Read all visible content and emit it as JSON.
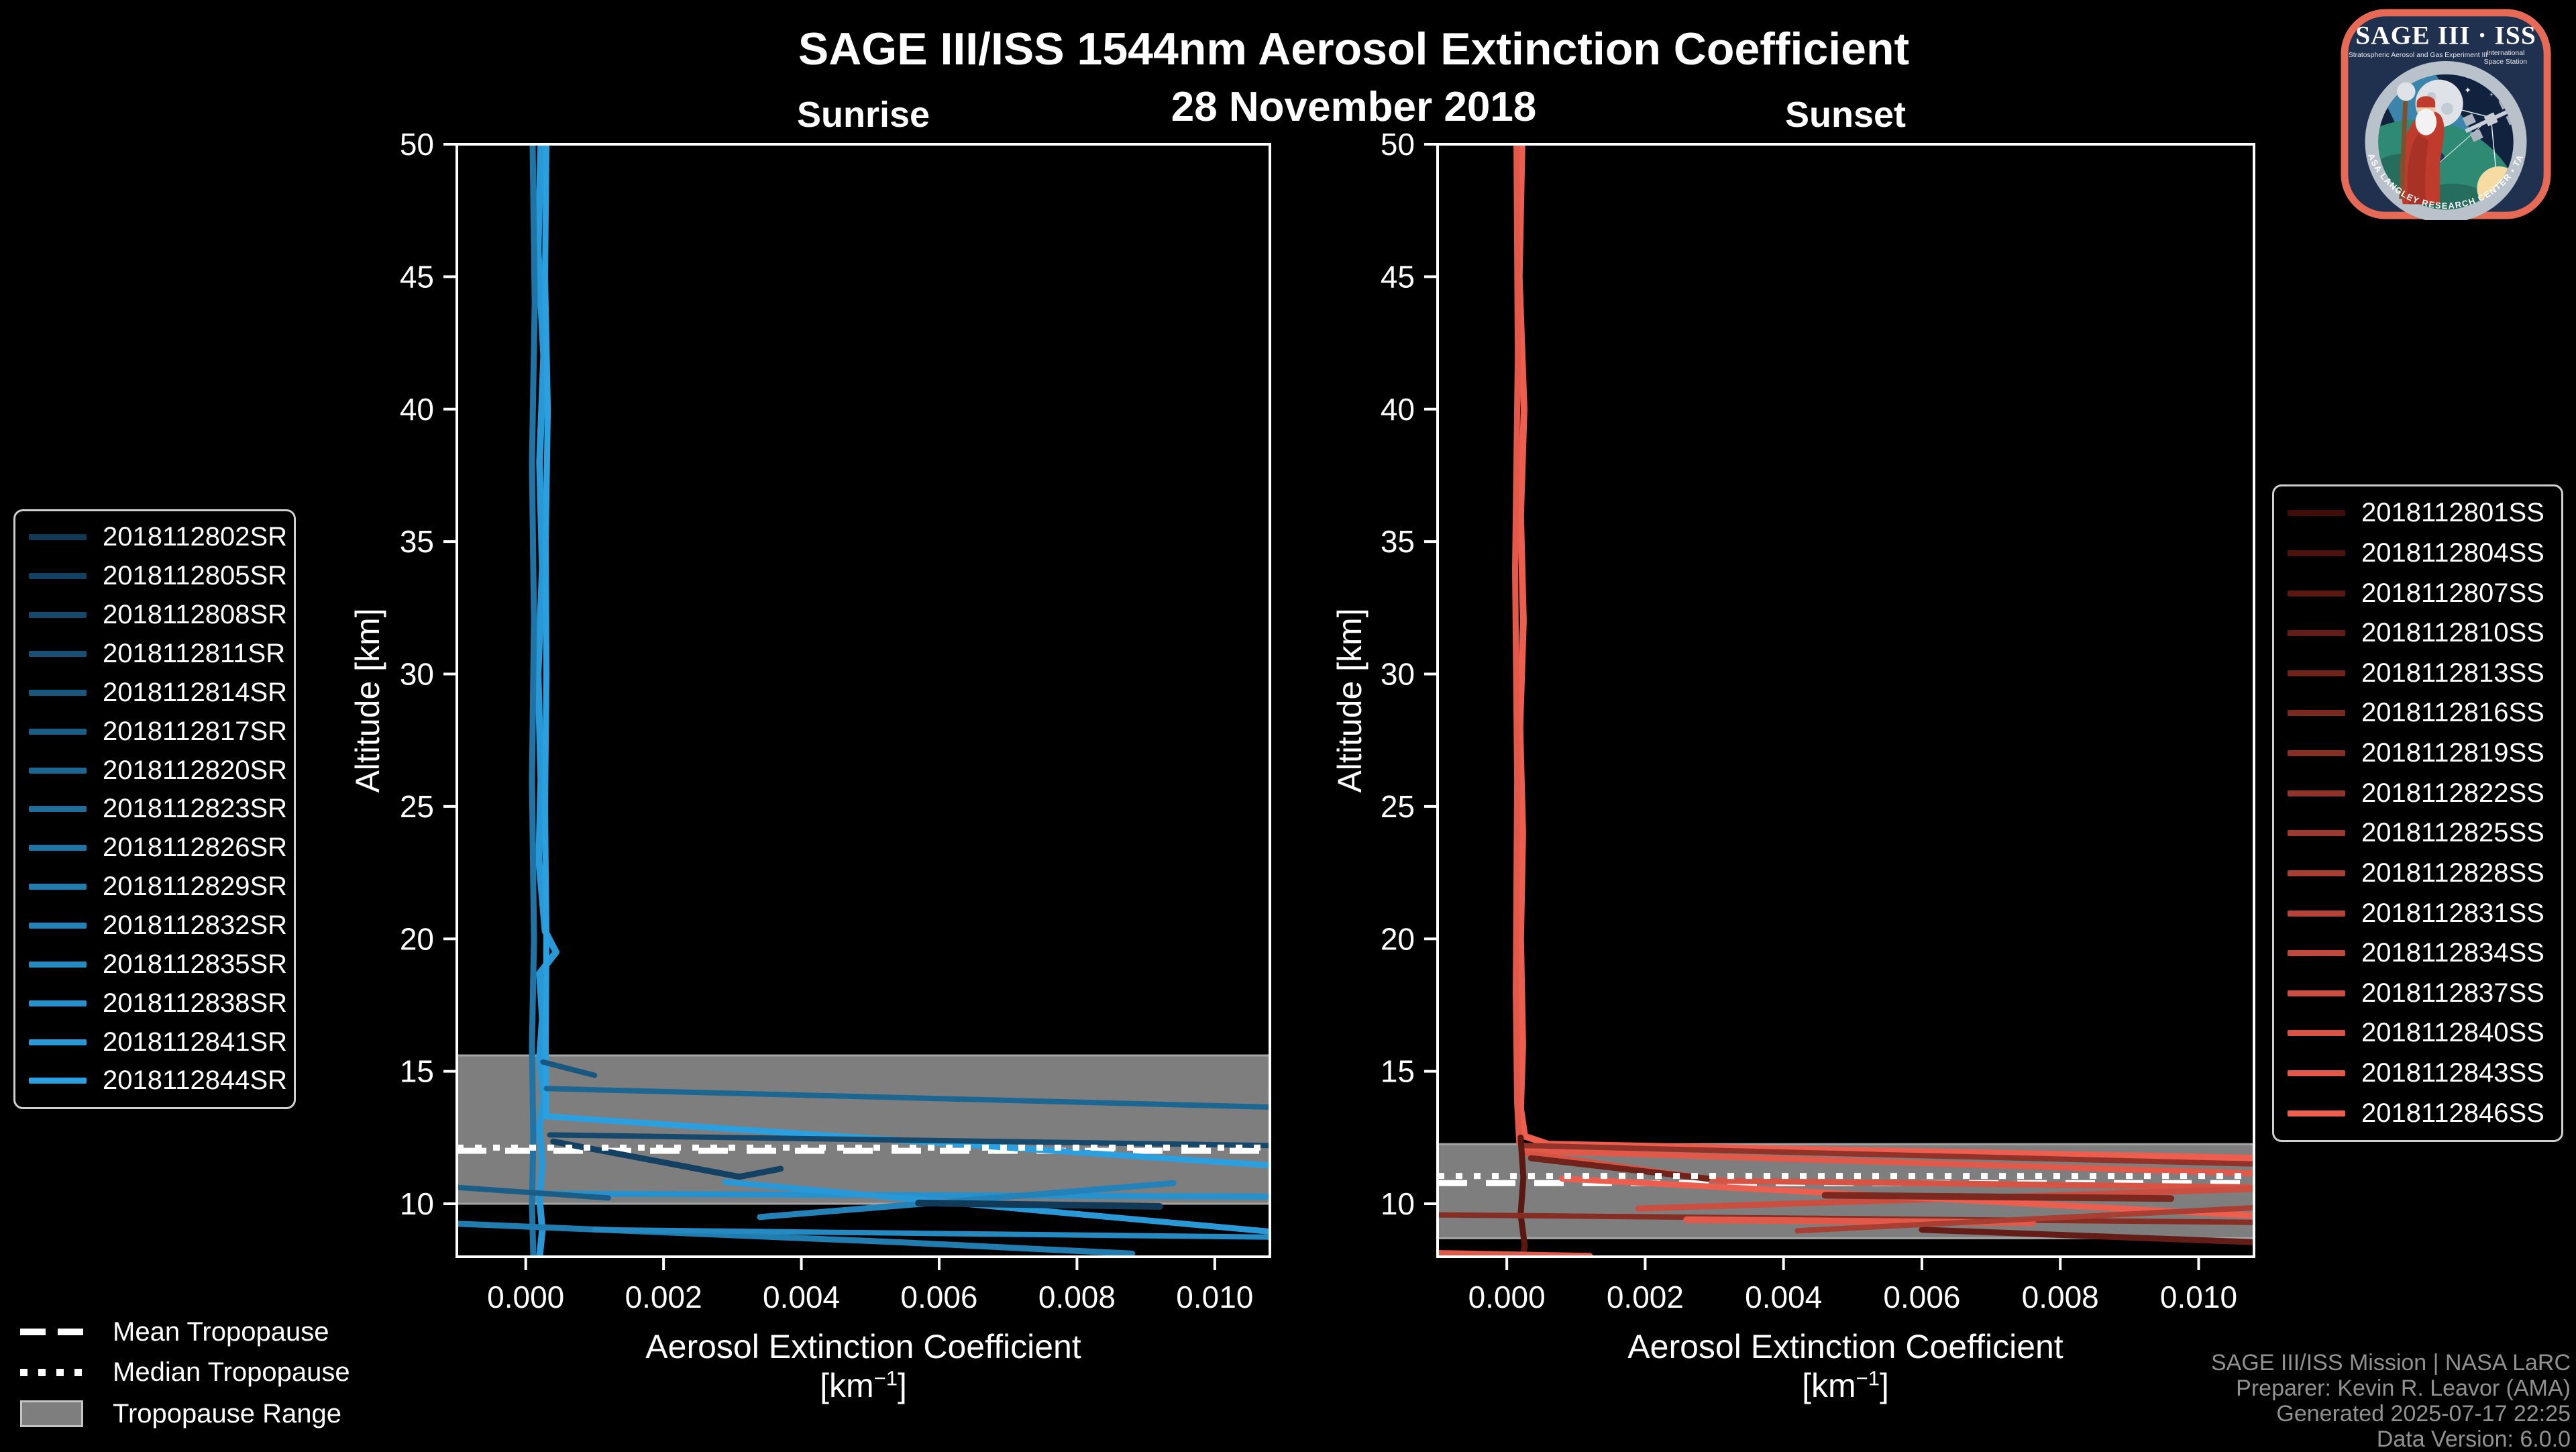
{
  "title": "SAGE III/ISS 1544nm Aerosol Extinction Coefficient",
  "subtitle": "28 November 2018",
  "tropopause_legend": {
    "mean": "Mean Tropopause",
    "median": "Median Tropopause",
    "range": "Tropopause Range"
  },
  "credits": {
    "lines": [
      "SAGE III/ISS Mission | NASA LaRC",
      "Preparer: Kevin R. Leavor (AMA)",
      "Generated 2025-07-17 22:25",
      "Data Version: 6.0.0"
    ]
  },
  "logo": {
    "title": "SAGE III · ISS",
    "subtitle_left": "Stratospheric Aerosol and Gas Experiment III",
    "intl_1": "International",
    "intl_2": "Space Station",
    "arc_text": "BALL • NASA LANGLEY RESEARCH CENTER • TAS-I • ESA"
  },
  "chart_data": {
    "type": "line",
    "title": "SAGE III/ISS 1544nm Aerosol Extinction Coefficient",
    "subtitle": "28 November 2018",
    "xlabel_line1": "Aerosol Extinction Coefficient",
    "xlabel_km_prefix": "[km",
    "xlabel_sup": "−1",
    "xlabel_suffix": "]",
    "ylabel": "Altitude [km]",
    "xlim": [
      -0.001,
      0.0108
    ],
    "ylim": [
      8,
      50
    ],
    "grid": false,
    "xticks": [
      {
        "v": 0.0,
        "label": "0.000"
      },
      {
        "v": 0.002,
        "label": "0.002"
      },
      {
        "v": 0.004,
        "label": "0.004"
      },
      {
        "v": 0.006,
        "label": "0.006"
      },
      {
        "v": 0.008,
        "label": "0.008"
      },
      {
        "v": 0.01,
        "label": "0.010"
      }
    ],
    "yticks": [
      {
        "v": 10,
        "label": "10"
      },
      {
        "v": 15,
        "label": "15"
      },
      {
        "v": 20,
        "label": "20"
      },
      {
        "v": 25,
        "label": "25"
      },
      {
        "v": 30,
        "label": "30"
      },
      {
        "v": 35,
        "label": "35"
      },
      {
        "v": 40,
        "label": "40"
      },
      {
        "v": 45,
        "label": "45"
      },
      {
        "v": 50,
        "label": "50"
      }
    ],
    "colors": {
      "background": "#000000",
      "axis": "#ffffff",
      "band": "#7e7e7e",
      "band_edge": "#a5a5a5",
      "tropopause_lines": "#ffffff"
    },
    "panels": [
      {
        "label": "Sunrise",
        "legend_position": "left",
        "tropopause": {
          "mean": 12.0,
          "median": 12.12,
          "range": [
            10.0,
            15.6
          ]
        },
        "legend": [
          {
            "id": "2018112802SR",
            "color": "#113A58"
          },
          {
            "id": "2018112805SR",
            "color": "#134162"
          },
          {
            "id": "2018112808SR",
            "color": "#15486B"
          },
          {
            "id": "2018112811SR",
            "color": "#175075"
          },
          {
            "id": "2018112814SR",
            "color": "#18577F"
          },
          {
            "id": "2018112817SR",
            "color": "#1A5E88"
          },
          {
            "id": "2018112820SR",
            "color": "#1C6692"
          },
          {
            "id": "2018112823SR",
            "color": "#1E6D9C"
          },
          {
            "id": "2018112826SR",
            "color": "#1F74A5"
          },
          {
            "id": "2018112829SR",
            "color": "#217CAF"
          },
          {
            "id": "2018112832SR",
            "color": "#2383B9"
          },
          {
            "id": "2018112835SR",
            "color": "#258AC2"
          },
          {
            "id": "2018112838SR",
            "color": "#2691CC"
          },
          {
            "id": "2018112841SR",
            "color": "#2899D6"
          },
          {
            "id": "2018112844SR",
            "color": "#2AA0E0"
          }
        ],
        "series": [
          {
            "color": "#2899D6",
            "width": 10,
            "points": [
              [
                0.00022,
                50
              ],
              [
                0.00018,
                46
              ],
              [
                0.00026,
                42
              ],
              [
                0.0002,
                38
              ],
              [
                0.00024,
                34
              ],
              [
                0.00018,
                30
              ],
              [
                0.00022,
                26
              ],
              [
                0.00019,
                23
              ],
              [
                0.00028,
                20.3
              ],
              [
                0.00044,
                19.5
              ],
              [
                0.0002,
                18.7
              ],
              [
                0.00024,
                17
              ],
              [
                0.0002,
                15.5
              ],
              [
                0.00026,
                14
              ],
              [
                0.0002,
                12.9
              ],
              [
                0.00024,
                11.5
              ],
              [
                0.0002,
                10.2
              ],
              [
                0.00024,
                9.0
              ],
              [
                0.0002,
                8.0
              ]
            ]
          },
          {
            "color": "#1F74A5",
            "width": 9,
            "points": [
              [
                0.0001,
                50
              ],
              [
                0.00013,
                44
              ],
              [
                9e-05,
                38
              ],
              [
                0.00012,
                32
              ],
              [
                9e-05,
                26
              ],
              [
                0.00012,
                20
              ],
              [
                9e-05,
                16
              ],
              [
                0.00011,
                12.5
              ],
              [
                9e-05,
                10
              ],
              [
                0.00011,
                8.0
              ]
            ]
          },
          {
            "color": "#2AA0E0",
            "width": 9,
            "points": [
              [
                0.0003,
                50
              ],
              [
                0.00028,
                45
              ],
              [
                0.00032,
                40
              ],
              [
                0.00029,
                35
              ],
              [
                0.0003,
                30
              ],
              [
                0.00028,
                25
              ],
              [
                0.0003,
                20
              ],
              [
                0.00029,
                16
              ],
              [
                0.0003,
                13.3
              ],
              [
                0.0108,
                11.45
              ]
            ]
          },
          {
            "color": "#1C6692",
            "width": 8,
            "points": [
              [
                0.0003,
                14.35
              ],
              [
                0.0108,
                13.65
              ]
            ]
          },
          {
            "color": "#15486B",
            "width": 8,
            "points": [
              [
                0.00035,
                12.6
              ],
              [
                0.0108,
                12.2
              ]
            ]
          },
          {
            "color": "#134162",
            "width": 9,
            "points": [
              [
                0.0004,
                12.35
              ],
              [
                0.0031,
                11.02
              ],
              [
                0.0037,
                11.32
              ]
            ]
          },
          {
            "color": "#18577F",
            "width": 8,
            "points": [
              [
                0.00025,
                15.35
              ],
              [
                0.001,
                14.85
              ]
            ]
          },
          {
            "color": "#2691CC",
            "width": 9,
            "points": [
              [
                0.0002,
                10.38
              ],
              [
                0.0108,
                10.27
              ]
            ]
          },
          {
            "color": "#2383B9",
            "width": 9,
            "points": [
              [
                0.0034,
                9.5
              ],
              [
                0.0094,
                10.78
              ]
            ]
          },
          {
            "color": "#2899D6",
            "width": 9,
            "points": [
              [
                0.0029,
                10.82
              ],
              [
                0.0108,
                8.95
              ]
            ]
          },
          {
            "color": "#113A58",
            "width": 10,
            "points": [
              [
                0.0057,
                10.03
              ],
              [
                0.0092,
                9.9
              ]
            ]
          },
          {
            "color": "#217CAF",
            "width": 9,
            "points": [
              [
                -0.001,
                9.25
              ],
              [
                0.0054,
                8.55
              ],
              [
                0.0088,
                8.12
              ]
            ]
          },
          {
            "color": "#258AC2",
            "width": 8,
            "points": [
              [
                0.001,
                9.02
              ],
              [
                0.0108,
                8.74
              ]
            ]
          },
          {
            "color": "#1A5E88",
            "width": 8,
            "points": [
              [
                -0.001,
                10.62
              ],
              [
                0.0012,
                10.22
              ]
            ]
          }
        ]
      },
      {
        "label": "Sunset",
        "legend_position": "right",
        "tropopause": {
          "mean": 10.78,
          "median": 11.05,
          "range": [
            8.7,
            12.25
          ]
        },
        "legend": [
          {
            "id": "2018112801SS",
            "color": "#420D08"
          },
          {
            "id": "2018112804SS",
            "color": "#4D120D"
          },
          {
            "id": "2018112807SS",
            "color": "#591811"
          },
          {
            "id": "2018112810SS",
            "color": "#641D16"
          },
          {
            "id": "2018112813SS",
            "color": "#70231B"
          },
          {
            "id": "2018112816SS",
            "color": "#7B281F"
          },
          {
            "id": "2018112819SS",
            "color": "#872E24"
          },
          {
            "id": "2018112822SS",
            "color": "#923329"
          },
          {
            "id": "2018112825SS",
            "color": "#9E392D"
          },
          {
            "id": "2018112828SS",
            "color": "#A93E32"
          },
          {
            "id": "2018112831SS",
            "color": "#B54337"
          },
          {
            "id": "2018112834SS",
            "color": "#C0493B"
          },
          {
            "id": "2018112837SS",
            "color": "#CC4E40"
          },
          {
            "id": "2018112840SS",
            "color": "#D75445"
          },
          {
            "id": "2018112843SS",
            "color": "#E35949"
          },
          {
            "id": "2018112846SS",
            "color": "#EE5E4E"
          }
        ],
        "series": [
          {
            "color": "#EE5E4E",
            "width": 10,
            "points": [
              [
                0.00022,
                50
              ],
              [
                0.00018,
                45
              ],
              [
                0.00025,
                40
              ],
              [
                0.0002,
                36
              ],
              [
                0.00024,
                32
              ],
              [
                0.00019,
                28
              ],
              [
                0.00023,
                24
              ],
              [
                0.0002,
                20
              ],
              [
                0.00023,
                16
              ],
              [
                0.0002,
                13.6
              ],
              [
                0.00026,
                12.55
              ],
              [
                0.0006,
                12.25
              ],
              [
                0.0108,
                11.72
              ]
            ]
          },
          {
            "color": "#E35949",
            "width": 9,
            "points": [
              [
                0.00014,
                50
              ],
              [
                0.00016,
                42
              ],
              [
                0.00012,
                34
              ],
              [
                0.00015,
                26
              ],
              [
                0.00013,
                18
              ],
              [
                0.00015,
                13.8
              ],
              [
                0.00018,
                12.3
              ],
              [
                0.0003,
                12.0
              ],
              [
                0.0108,
                11.15
              ]
            ]
          },
          {
            "color": "#923329",
            "width": 8,
            "points": [
              [
                0.00025,
                12.2
              ],
              [
                0.0108,
                11.5
              ]
            ]
          },
          {
            "color": "#D75445",
            "width": 9,
            "points": [
              [
                0.0003,
                11.9
              ],
              [
                0.0031,
                10.87
              ],
              [
                0.0108,
                10.62
              ]
            ]
          },
          {
            "color": "#70231B",
            "width": 9,
            "points": [
              [
                0.00035,
                11.72
              ],
              [
                0.0029,
                10.95
              ]
            ]
          },
          {
            "color": "#591811",
            "width": 9,
            "points": [
              [
                0.0002,
                12.5
              ],
              [
                0.00024,
                11.0
              ],
              [
                0.0002,
                9.6
              ],
              [
                0.00026,
                8.4
              ],
              [
                0.00022,
                8.0
              ]
            ]
          },
          {
            "color": "#872E24",
            "width": 8,
            "points": [
              [
                -0.001,
                9.58
              ],
              [
                0.0108,
                9.3
              ]
            ]
          },
          {
            "color": "#E35949",
            "width": 9,
            "points": [
              [
                -0.001,
                8.14
              ],
              [
                0.0012,
                8.03
              ]
            ]
          },
          {
            "color": "#CC4E40",
            "width": 9,
            "points": [
              [
                0.0019,
                9.82
              ],
              [
                0.0108,
                10.56
              ]
            ]
          },
          {
            "color": "#EE5E4E",
            "width": 9,
            "points": [
              [
                0.0008,
                10.95
              ],
              [
                0.0108,
                9.55
              ]
            ]
          },
          {
            "color": "#7B281F",
            "width": 10,
            "points": [
              [
                0.0046,
                10.32
              ],
              [
                0.0096,
                10.2
              ]
            ]
          },
          {
            "color": "#641D16",
            "width": 9,
            "points": [
              [
                0.006,
                9.02
              ],
              [
                0.0108,
                8.55
              ]
            ]
          },
          {
            "color": "#E35949",
            "width": 10,
            "points": [
              [
                0.0026,
                9.4
              ],
              [
                0.0076,
                9.28
              ]
            ]
          },
          {
            "color": "#A93E32",
            "width": 8,
            "points": [
              [
                0.0042,
                8.98
              ],
              [
                0.0108,
                9.85
              ]
            ]
          }
        ]
      }
    ]
  }
}
